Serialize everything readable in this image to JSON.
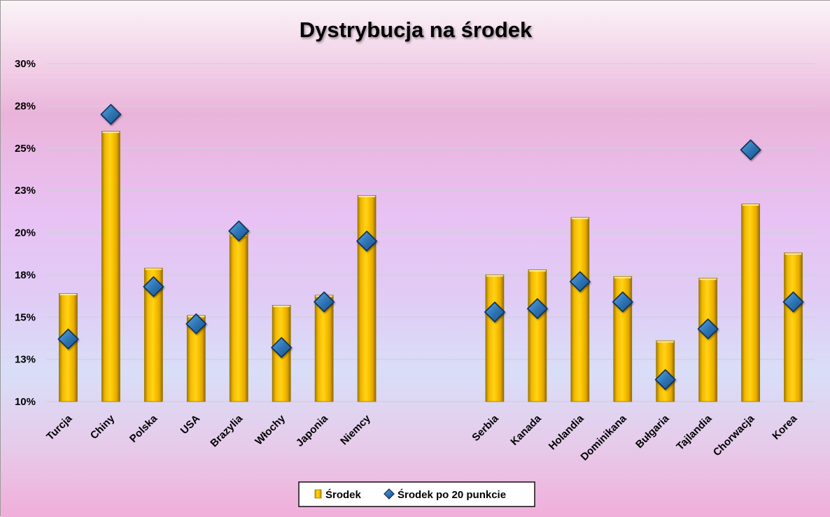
{
  "chart_data": {
    "type": "bar",
    "title": "Dystrybucja na środek",
    "xlabel": "",
    "ylabel": "",
    "ylim": [
      0.1,
      0.3
    ],
    "yticks": [
      0.1,
      0.125,
      0.15,
      0.175,
      0.2,
      0.225,
      0.25,
      0.275,
      0.3
    ],
    "ytick_labels": [
      "10%",
      "13%",
      "15%",
      "18%",
      "20%",
      "23%",
      "25%",
      "28%",
      "30%"
    ],
    "grid": true,
    "legend_position": "bottom",
    "categories": [
      "Turcja",
      "Chiny",
      "Polska",
      "USA",
      "Brazylia",
      "Włochy",
      "Japonia",
      "Niemcy",
      "",
      "",
      "Serbia",
      "Kanada",
      "Holandia",
      "Dominikana",
      "Bułgaria",
      "Tajlandia",
      "Chorwacja",
      "Korea"
    ],
    "series": [
      {
        "name": "Środek",
        "type": "bar",
        "color": "#FFC000",
        "values": [
          0.164,
          0.26,
          0.179,
          0.151,
          0.199,
          0.157,
          0.163,
          0.222,
          null,
          null,
          0.175,
          0.178,
          0.209,
          0.174,
          0.136,
          0.173,
          0.217,
          0.188
        ]
      },
      {
        "name": "Środek po 20 punkcie",
        "type": "scatter",
        "marker": "diamond",
        "color": "#2E75B6",
        "values": [
          0.137,
          0.27,
          0.168,
          0.146,
          0.201,
          0.132,
          0.159,
          0.195,
          null,
          null,
          0.153,
          0.155,
          0.171,
          0.159,
          0.113,
          0.143,
          0.249,
          0.159
        ]
      }
    ]
  }
}
